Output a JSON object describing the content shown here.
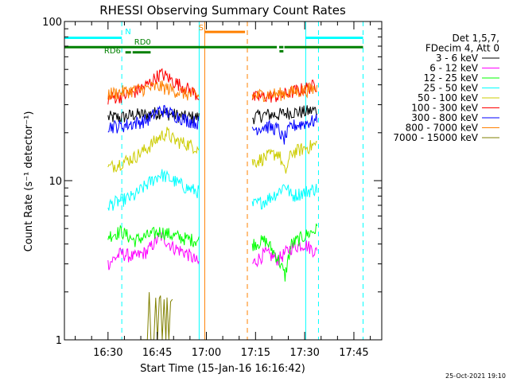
{
  "chart_data": {
    "type": "line",
    "title": "RHESSI Observing Summary Count Rates",
    "xlabel": "Start Time (15-Jan-16 16:16:42)",
    "ylabel": "Count Rate (s⁻¹ detector⁻¹)",
    "yscale": "log",
    "ylim": [
      1,
      100
    ],
    "xlim_minutes_of_day": [
      976.7,
      1073.5
    ],
    "xticks": [
      {
        "label": "16:30",
        "t": 990
      },
      {
        "label": "16:45",
        "t": 1005
      },
      {
        "label": "17:00",
        "t": 1020
      },
      {
        "label": "17:15",
        "t": 1035
      },
      {
        "label": "17:30",
        "t": 1050
      },
      {
        "label": "17:45",
        "t": 1065
      }
    ],
    "yticks": [
      {
        "label": "1",
        "v": 1
      },
      {
        "label": "10",
        "v": 10
      },
      {
        "label": "100",
        "v": 100
      }
    ],
    "legend": {
      "header": [
        "Det 1,5,7,",
        "FDecim 4, Att 0"
      ],
      "placement": "right"
    },
    "series": [
      {
        "name": "3 - 6 keV",
        "color": "#000000",
        "segments": [
          {
            "t": [
              990.0,
              994.0,
              998.0,
              1002.0,
              1006.0,
              1010.0,
              1014.0,
              1017.8
            ],
            "v": [
              25,
              25,
              26,
              26,
              27,
              26,
              25,
              25
            ]
          },
          {
            "t": [
              1034.0,
              1038.0,
              1042.0,
              1046.0,
              1050.0,
              1054.0
            ],
            "v": [
              25,
              26,
              26,
              27,
              27,
              28
            ]
          }
        ]
      },
      {
        "name": "6 - 12 keV",
        "color": "#ff00ff",
        "segments": [
          {
            "t": [
              990.0,
              994.0,
              998.0,
              1002.0,
              1006.0,
              1010.0,
              1014.0,
              1017.8
            ],
            "v": [
              3.0,
              3.5,
              3.3,
              3.6,
              4.5,
              3.8,
              3.5,
              3.0
            ]
          },
          {
            "t": [
              1034.0,
              1038.0,
              1042.0,
              1046.0,
              1050.0,
              1054.0
            ],
            "v": [
              3.0,
              3.5,
              3.2,
              3.8,
              4.0,
              3.5
            ]
          }
        ]
      },
      {
        "name": "12 - 25 keV",
        "color": "#00ff00",
        "segments": [
          {
            "t": [
              990.0,
              994.0,
              998.0,
              1002.0,
              1006.0,
              1010.0,
              1014.0,
              1017.8
            ],
            "v": [
              4.5,
              4.8,
              4.2,
              4.5,
              4.8,
              4.5,
              4.3,
              4.2
            ]
          },
          {
            "t": [
              1034.0,
              1038.0,
              1042.0,
              1044.0,
              1046.0,
              1050.0,
              1054.0
            ],
            "v": [
              4.0,
              4.2,
              3.2,
              2.5,
              4.0,
              4.5,
              5.0
            ]
          }
        ]
      },
      {
        "name": "25 - 50 keV",
        "color": "#00ffff",
        "segments": [
          {
            "t": [
              990.0,
              994.0,
              998.0,
              1002.0,
              1006.0,
              1010.0,
              1014.0,
              1017.8
            ],
            "v": [
              7.0,
              7.5,
              8.0,
              9.5,
              11.0,
              10.0,
              9.0,
              8.5
            ]
          },
          {
            "t": [
              1034.0,
              1038.0,
              1042.0,
              1044.0,
              1046.0,
              1050.0,
              1054.0
            ],
            "v": [
              7.0,
              7.5,
              8.5,
              9.5,
              8.0,
              8.5,
              9.0
            ]
          }
        ]
      },
      {
        "name": "50 - 100 keV",
        "color": "#cccc00",
        "segments": [
          {
            "t": [
              990.0,
              994.0,
              998.0,
              1002.0,
              1006.0,
              1008.0,
              1010.0,
              1014.0,
              1017.8
            ],
            "v": [
              12,
              13,
              14,
              16,
              19,
              20,
              18,
              17,
              16
            ]
          },
          {
            "t": [
              1034.0,
              1038.0,
              1042.0,
              1044.0,
              1046.0,
              1050.0,
              1054.0
            ],
            "v": [
              13,
              14,
              15,
              11,
              15,
              16,
              17
            ]
          }
        ]
      },
      {
        "name": "100 - 300 keV",
        "color": "#ff0000",
        "segments": [
          {
            "t": [
              990.0,
              994.0,
              998.0,
              1002.0,
              1006.0,
              1008.0,
              1010.0,
              1014.0,
              1017.8
            ],
            "v": [
              33,
              34,
              36,
              40,
              47,
              45,
              42,
              38,
              34
            ]
          },
          {
            "t": [
              1034.0,
              1038.0,
              1042.0,
              1046.0,
              1050.0,
              1054.0
            ],
            "v": [
              33,
              34,
              34,
              36,
              38,
              40
            ]
          }
        ]
      },
      {
        "name": "300 - 800 keV",
        "color": "#0000ff",
        "segments": [
          {
            "t": [
              990.0,
              994.0,
              998.0,
              1002.0,
              1006.0,
              1010.0,
              1014.0,
              1017.8
            ],
            "v": [
              22,
              22,
              23,
              24,
              28,
              26,
              24,
              23
            ]
          },
          {
            "t": [
              1034.0,
              1038.0,
              1042.0,
              1043.5,
              1046.0,
              1050.0,
              1054.0
            ],
            "v": [
              21,
              22,
              21,
              18,
              22,
              23,
              24
            ]
          }
        ]
      },
      {
        "name": "800 - 7000 keV",
        "color": "#ff8000",
        "segments": [
          {
            "t": [
              990.0,
              994.0,
              998.0,
              1002.0,
              1006.0,
              1010.0,
              1014.0,
              1017.8
            ],
            "v": [
              35,
              36,
              37,
              38,
              39,
              37,
              35,
              34
            ]
          },
          {
            "t": [
              1034.0,
              1038.0,
              1042.0,
              1046.0,
              1050.0,
              1054.0
            ],
            "v": [
              34,
              35,
              35,
              36,
              37,
              38
            ]
          }
        ]
      },
      {
        "name": "7000 - 15000 keV",
        "color": "#808000",
        "segments": [
          {
            "t": [
              1000.0,
              1002.0,
              1004.0,
              1006.0,
              1008.0,
              1010.0
            ],
            "v": [
              1.7,
              1.9,
              1.8,
              1.9,
              1.7,
              1.8
            ]
          }
        ]
      }
    ],
    "vlines": [
      {
        "t": 994.2,
        "color": "#00ffff",
        "dash": true
      },
      {
        "t": 1017.8,
        "color": "#00ffff",
        "dash": false
      },
      {
        "t": 1019.5,
        "color": "#ff8000",
        "dash": false
      },
      {
        "t": 1032.5,
        "color": "#ff8000",
        "dash": true
      },
      {
        "t": 1050.3,
        "color": "#00ffff",
        "dash": false
      },
      {
        "t": 1054.2,
        "color": "#00ffff",
        "dash": true
      },
      {
        "t": 1067.8,
        "color": "#00ffff",
        "dash": true
      }
    ],
    "flag_bars": [
      {
        "t0": 976.7,
        "t1": 994.2,
        "v": 79,
        "color": "#00ffff"
      },
      {
        "t0": 1050.3,
        "t1": 1067.8,
        "v": 79,
        "color": "#00ffff"
      },
      {
        "t0": 1019.5,
        "t1": 1031.8,
        "v": 86,
        "color": "#ff8000"
      },
      {
        "t0": 976.7,
        "t1": 1041.5,
        "v": 69,
        "color": "#008000"
      },
      {
        "t0": 1042.2,
        "t1": 1043.5,
        "v": 69,
        "color": "#008000"
      },
      {
        "t0": 1043.8,
        "t1": 1067.8,
        "v": 69,
        "color": "#008000"
      },
      {
        "t0": 1042.3,
        "t1": 1043.5,
        "v": 65,
        "color": "#008000"
      },
      {
        "t0": 995.3,
        "t1": 997.0,
        "v": 64,
        "color": "#008000"
      },
      {
        "t0": 997.5,
        "t1": 1003.0,
        "v": 64,
        "color": "#008000"
      }
    ],
    "flag_labels": [
      {
        "text": "N",
        "color": "#00ffff",
        "t": 995.2,
        "v": 83
      },
      {
        "text": "S",
        "color": "#ff8000",
        "t": 1017.6,
        "v": 88
      },
      {
        "text": "RD0",
        "color": "#008000",
        "t": 998.0,
        "v": 71.5
      },
      {
        "text": "RD6",
        "color": "#008000",
        "t": 988.8,
        "v": 63
      }
    ],
    "timestamp": "25-Oct-2021 19:10"
  }
}
